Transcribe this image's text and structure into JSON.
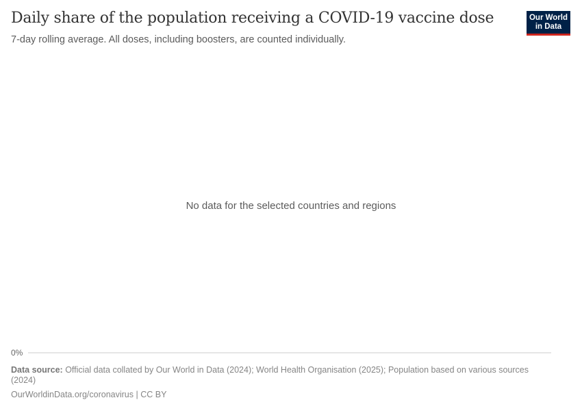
{
  "header": {
    "title": "Daily share of the population receiving a COVID-19 vaccine dose",
    "subtitle": "7-day rolling average. All doses, including boosters, are counted individually.",
    "logo": "Our World in Data"
  },
  "chart_data": {
    "type": "line",
    "title": "Daily share of the population receiving a COVID-19 vaccine dose",
    "subtitle": "7-day rolling average. All doses, including boosters, are counted individually.",
    "series": [],
    "y_ticks": [
      "0%"
    ],
    "no_data_message": "No data for the selected countries and regions"
  },
  "footer": {
    "source_label": "Data source:",
    "source_text": " Official data collated by Our World in Data (2024); World Health Organisation (2025); Population based on various sources (2024)",
    "url_license": "OurWorldinData.org/coronavirus | CC BY"
  },
  "colors": {
    "logo_bg": "#002147",
    "logo_accent": "#ce261e"
  }
}
